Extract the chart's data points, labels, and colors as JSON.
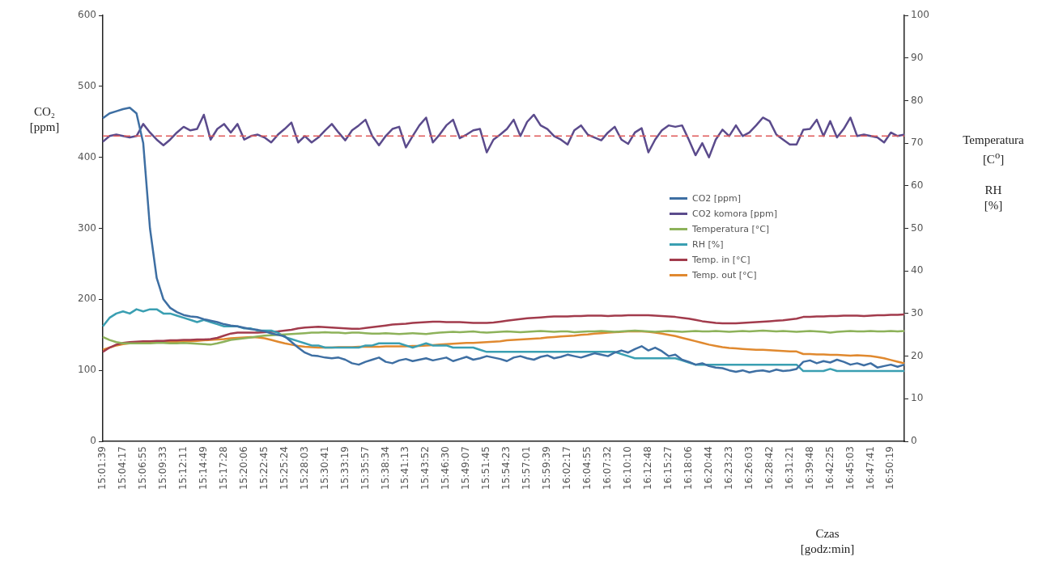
{
  "chart_data": {
    "type": "line",
    "categories": [
      "15:01:39",
      null,
      null,
      "15:04:17",
      null,
      null,
      "15:06:55",
      null,
      null,
      "15:09:33",
      null,
      null,
      "15:12:11",
      null,
      null,
      "15:14:49",
      null,
      null,
      "15:17:28",
      null,
      null,
      "15:20:06",
      null,
      null,
      "15:22:45",
      null,
      null,
      "15:25:24",
      null,
      null,
      "15:28:03",
      null,
      null,
      "15:30:41",
      null,
      null,
      "15:33:19",
      null,
      null,
      "15:35:57",
      null,
      null,
      "15:38:34",
      null,
      null,
      "15:41:13",
      null,
      null,
      "15:43:52",
      null,
      null,
      "15:46:30",
      null,
      null,
      "15:49:07",
      null,
      null,
      "15:51:45",
      null,
      null,
      "15:54:23",
      null,
      null,
      "15:57:01",
      null,
      null,
      "15:59:39",
      null,
      null,
      "16:02:17",
      null,
      null,
      "16:04:55",
      null,
      null,
      "16:07:32",
      null,
      null,
      "16:10:10",
      null,
      null,
      "16:12:48",
      null,
      null,
      "16:15:27",
      null,
      null,
      "16:18:06",
      null,
      null,
      "16:20:44",
      null,
      null,
      "16:23:23",
      null,
      null,
      "16:26:03",
      null,
      null,
      "16:28:42",
      null,
      null,
      "16:31:21",
      null,
      null,
      "16:39:48",
      null,
      null,
      "16:42:25",
      null,
      null,
      "16:45:03",
      null,
      null,
      "16:47:41",
      null,
      null,
      "16:50:19",
      null,
      null
    ],
    "series": [
      {
        "name": "CO2 [ppm]",
        "color": "#3e6fa3",
        "values": [
          455,
          462,
          465,
          468,
          470,
          462,
          420,
          300,
          230,
          200,
          188,
          182,
          178,
          176,
          175,
          172,
          170,
          168,
          165,
          163,
          162,
          160,
          158,
          157,
          155,
          152,
          150,
          148,
          140,
          132,
          125,
          121,
          120,
          118,
          117,
          118,
          115,
          110,
          108,
          112,
          115,
          118,
          112,
          110,
          114,
          116,
          113,
          115,
          117,
          114,
          116,
          118,
          113,
          116,
          119,
          115,
          117,
          120,
          118,
          116,
          113,
          118,
          120,
          117,
          115,
          119,
          121,
          117,
          119,
          122,
          120,
          118,
          121,
          124,
          122,
          120,
          125,
          128,
          125,
          130,
          134,
          128,
          132,
          127,
          120,
          122,
          115,
          112,
          108,
          110,
          106,
          104,
          103,
          100,
          98,
          100,
          97,
          99,
          100,
          98,
          101,
          99,
          100,
          102,
          112,
          114,
          110,
          113,
          111,
          115,
          112,
          108,
          110,
          107,
          110,
          104,
          106,
          108,
          105,
          108
        ]
      },
      {
        "name": "CO2 komora [ppm]",
        "color": "#5b4b8c",
        "values": [
          422,
          430,
          432,
          430,
          428,
          430,
          447,
          435,
          425,
          417,
          425,
          435,
          443,
          438,
          440,
          460,
          425,
          440,
          447,
          435,
          447,
          425,
          430,
          432,
          428,
          421,
          432,
          440,
          449,
          421,
          430,
          421,
          428,
          438,
          447,
          435,
          424,
          438,
          445,
          453,
          430,
          417,
          430,
          440,
          443,
          414,
          430,
          445,
          456,
          421,
          432,
          445,
          453,
          427,
          432,
          438,
          440,
          407,
          425,
          432,
          440,
          453,
          430,
          450,
          460,
          445,
          440,
          430,
          425,
          418,
          438,
          445,
          432,
          428,
          424,
          435,
          443,
          425,
          419,
          435,
          441,
          407,
          425,
          438,
          445,
          443,
          445,
          425,
          403,
          420,
          400,
          425,
          439,
          430,
          445,
          430,
          435,
          445,
          456,
          451,
          432,
          425,
          418,
          418,
          439,
          440,
          453,
          430,
          451,
          428,
          440,
          456,
          430,
          432,
          430,
          428,
          421,
          435,
          430,
          432
        ]
      },
      {
        "name": "Temperatura [°C]",
        "color": "#8db25a",
        "axis": "y2",
        "values": [
          24.5,
          23.8,
          23.3,
          23,
          23,
          23,
          23,
          23,
          23.1,
          23.1,
          23,
          23,
          23.1,
          23,
          22.9,
          22.8,
          22.7,
          23,
          23.4,
          23.8,
          24,
          24.2,
          24.4,
          24.6,
          24.8,
          24.9,
          25,
          25.1,
          25.2,
          25.3,
          25.4,
          25.5,
          25.5,
          25.6,
          25.5,
          25.5,
          25.4,
          25.5,
          25.5,
          25.4,
          25.3,
          25.3,
          25.4,
          25.3,
          25.2,
          25.3,
          25.4,
          25.3,
          25.2,
          25.4,
          25.5,
          25.6,
          25.7,
          25.6,
          25.7,
          25.8,
          25.6,
          25.5,
          25.6,
          25.7,
          25.8,
          25.7,
          25.6,
          25.7,
          25.8,
          25.9,
          25.8,
          25.7,
          25.8,
          25.8,
          25.6,
          25.7,
          25.8,
          25.8,
          25.9,
          25.8,
          25.7,
          25.8,
          25.9,
          26,
          25.9,
          25.8,
          25.7,
          25.8,
          25.9,
          25.8,
          25.7,
          25.8,
          25.9,
          25.8,
          25.8,
          25.9,
          25.8,
          25.7,
          25.8,
          25.9,
          25.8,
          25.9,
          26,
          25.9,
          25.8,
          25.9,
          25.8,
          25.7,
          25.8,
          25.9,
          25.8,
          25.7,
          25.5,
          25.7,
          25.8,
          25.9,
          25.8,
          25.8,
          25.9,
          25.8,
          25.8,
          25.9,
          25.8,
          25.9
        ]
      },
      {
        "name": "RH [%]",
        "color": "#3a9fb2",
        "axis": "y2",
        "values": [
          27,
          29,
          30,
          30.5,
          30,
          31,
          30.5,
          31,
          31,
          30,
          30,
          29.5,
          29,
          28.5,
          28,
          28.5,
          28,
          27.5,
          27,
          27,
          27,
          26.5,
          26.5,
          26,
          26,
          26,
          25.5,
          24.5,
          24,
          23.5,
          23,
          22.5,
          22.5,
          22,
          22,
          22,
          22,
          22,
          22,
          22.5,
          22.5,
          23,
          23,
          23,
          23,
          22.5,
          22,
          22.5,
          23,
          22.5,
          22.5,
          22.5,
          22,
          22,
          22,
          22,
          21.5,
          21,
          21,
          21,
          21,
          21,
          21,
          21,
          21,
          21,
          21,
          21,
          21,
          21,
          21,
          21,
          21,
          21,
          21,
          21,
          21,
          20.5,
          20,
          19.5,
          19.5,
          19.5,
          19.5,
          19.5,
          19.5,
          19.5,
          19,
          18.5,
          18,
          18,
          18,
          18,
          18,
          18,
          18,
          18,
          18,
          18,
          18,
          18,
          18,
          18,
          18,
          18,
          16.5,
          16.5,
          16.5,
          16.5,
          17,
          16.5,
          16.5,
          16.5,
          16.5,
          16.5,
          16.5,
          16.5,
          16.5,
          16.5,
          16.5,
          16.5
        ]
      },
      {
        "name": "Temp. in [°C]",
        "color": "#a23b4c",
        "axis": "y2",
        "values": [
          21,
          22,
          22.7,
          23.1,
          23.3,
          23.4,
          23.5,
          23.5,
          23.6,
          23.6,
          23.7,
          23.7,
          23.8,
          23.8,
          23.9,
          23.9,
          24,
          24.3,
          24.8,
          25.3,
          25.5,
          25.5,
          25.5,
          25.5,
          25.6,
          25.7,
          25.8,
          26,
          26.2,
          26.5,
          26.7,
          26.8,
          26.9,
          26.8,
          26.7,
          26.6,
          26.5,
          26.4,
          26.4,
          26.6,
          26.8,
          27,
          27.2,
          27.4,
          27.5,
          27.6,
          27.8,
          27.9,
          28,
          28.1,
          28.1,
          28,
          28,
          28,
          27.9,
          27.8,
          27.8,
          27.8,
          27.9,
          28.1,
          28.3,
          28.5,
          28.7,
          28.9,
          29,
          29.1,
          29.2,
          29.3,
          29.3,
          29.3,
          29.4,
          29.4,
          29.5,
          29.5,
          29.5,
          29.4,
          29.5,
          29.5,
          29.6,
          29.6,
          29.6,
          29.6,
          29.5,
          29.4,
          29.3,
          29.2,
          29,
          28.8,
          28.5,
          28.2,
          28,
          27.8,
          27.7,
          27.7,
          27.7,
          27.8,
          27.9,
          28,
          28.1,
          28.2,
          28.3,
          28.4,
          28.6,
          28.8,
          29.2,
          29.2,
          29.3,
          29.3,
          29.4,
          29.4,
          29.5,
          29.5,
          29.5,
          29.4,
          29.5,
          29.6,
          29.6,
          29.7,
          29.7,
          29.8
        ]
      },
      {
        "name": "Temp. out [°C]",
        "color": "#e0892f",
        "axis": "y2",
        "values": [
          21.5,
          22,
          22.5,
          22.8,
          23,
          23.1,
          23.2,
          23.2,
          23.3,
          23.3,
          23.4,
          23.4,
          23.5,
          23.5,
          23.6,
          23.7,
          23.8,
          23.9,
          24,
          24.2,
          24.3,
          24.4,
          24.5,
          24.4,
          24.2,
          23.8,
          23.4,
          23,
          22.7,
          22.4,
          22.2,
          22.1,
          22,
          22,
          22,
          22.1,
          22.1,
          22.1,
          22.2,
          22.2,
          22.2,
          22.2,
          22.3,
          22.3,
          22.3,
          22.3,
          22.4,
          22.4,
          22.5,
          22.6,
          22.7,
          22.8,
          22.9,
          23,
          23.1,
          23.1,
          23.2,
          23.3,
          23.4,
          23.5,
          23.7,
          23.8,
          23.9,
          24,
          24.1,
          24.2,
          24.4,
          24.5,
          24.6,
          24.7,
          24.8,
          25,
          25.1,
          25.3,
          25.4,
          25.5,
          25.6,
          25.7,
          25.8,
          25.8,
          25.8,
          25.7,
          25.5,
          25.3,
          25,
          24.7,
          24.3,
          23.9,
          23.5,
          23.1,
          22.7,
          22.4,
          22.1,
          21.9,
          21.8,
          21.7,
          21.6,
          21.5,
          21.5,
          21.4,
          21.3,
          21.2,
          21.1,
          21.1,
          20.5,
          20.5,
          20.4,
          20.4,
          20.3,
          20.3,
          20.2,
          20.1,
          20.2,
          20.1,
          20,
          19.8,
          19.5,
          19.1,
          18.7,
          18.3
        ]
      }
    ],
    "ylim": [
      0,
      600
    ],
    "yticks": [
      0,
      100,
      200,
      300,
      400,
      500,
      600
    ],
    "y2lim": [
      0,
      100
    ],
    "y2ticks": [
      0,
      10,
      20,
      30,
      40,
      50,
      60,
      70,
      80,
      90,
      100
    ],
    "ylabel": "CO₂\n[ppm]",
    "y2label": "Temperatura\n[C$^{o}$]\n\nRH\n[%]",
    "xlabel": "Czas\n[godz:min]",
    "ref_lines": [
      {
        "axis": "y",
        "value": 430,
        "color": "#e05a5a",
        "line_style": "dashed"
      }
    ],
    "legend": "right",
    "marker": "none",
    "line_style": "solid"
  }
}
